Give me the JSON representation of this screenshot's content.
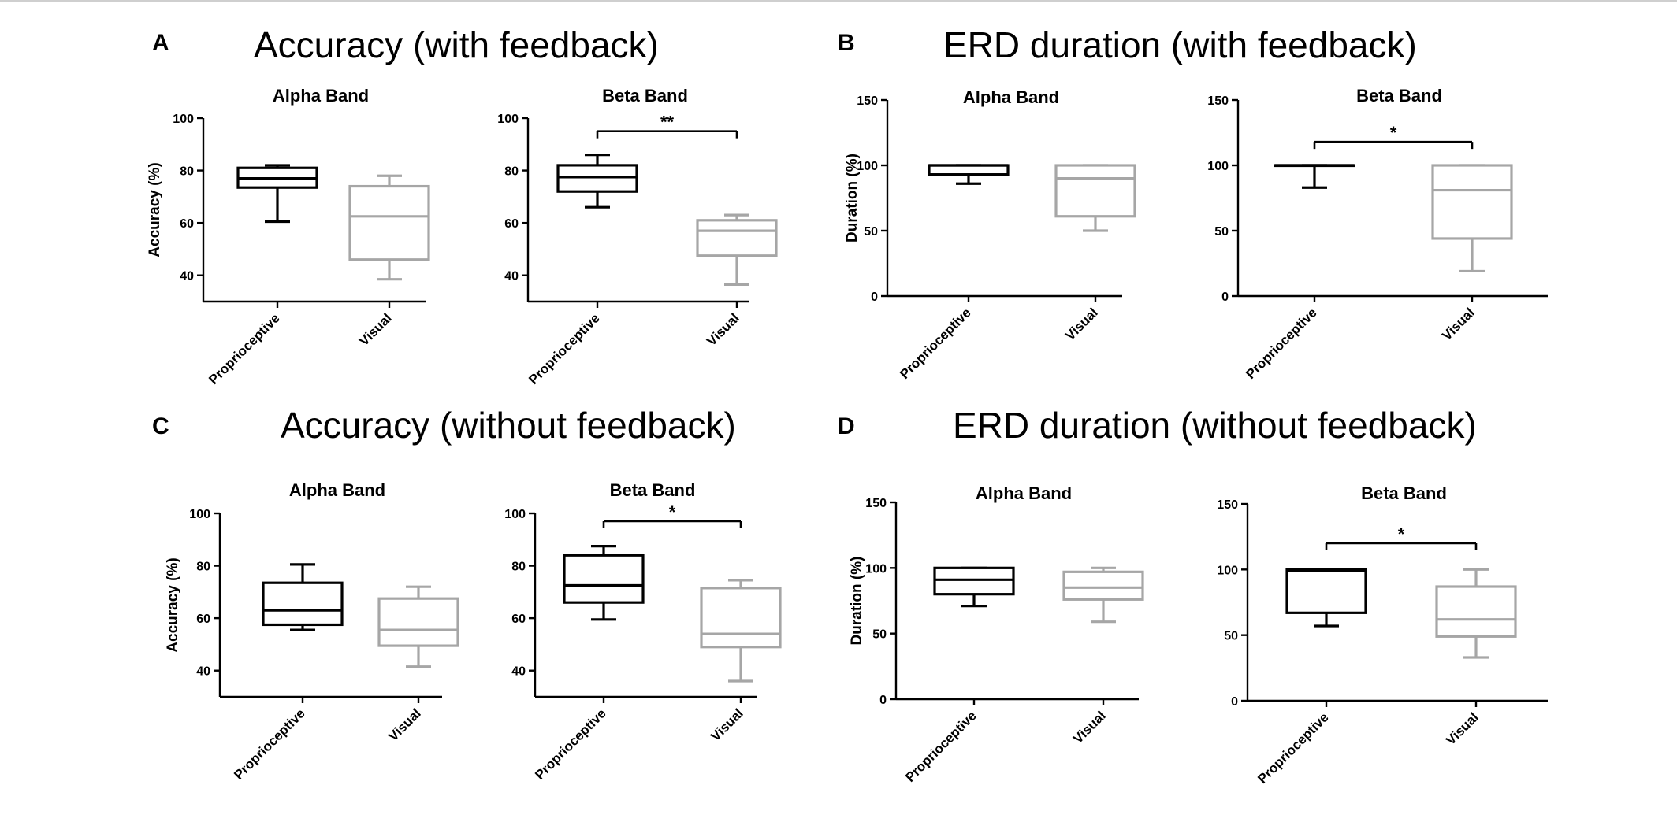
{
  "figure": {
    "panels": [
      {
        "letter": "A",
        "title": "Accuracy (with feedback)"
      },
      {
        "letter": "B",
        "title": "ERD duration (with feedback)"
      },
      {
        "letter": "C",
        "title": "Accuracy (without feedback)"
      },
      {
        "letter": "D",
        "title": "ERD duration (without feedback)"
      }
    ]
  },
  "colors": {
    "proprioceptive": "#000000",
    "visual": "#a6a6a6"
  },
  "chart_data": [
    {
      "type": "box",
      "panel": "A",
      "title": "Alpha Band",
      "ylabel": "Accuracy (%)",
      "ylim": [
        30,
        100
      ],
      "yticks": [
        40,
        60,
        80,
        100
      ],
      "categories": [
        "Proprioceptive",
        "Visual"
      ],
      "boxes": [
        {
          "min": 60.5,
          "q1": 73.5,
          "median": 77,
          "q3": 81,
          "max": 82
        },
        {
          "min": 38.5,
          "q1": 46,
          "median": 62.5,
          "q3": 74,
          "max": 78
        }
      ],
      "significance": null
    },
    {
      "type": "box",
      "panel": "A",
      "title": "Beta Band",
      "ylabel": "",
      "ylim": [
        30,
        100
      ],
      "yticks": [
        40,
        60,
        80,
        100
      ],
      "categories": [
        "Proprioceptive",
        "Visual"
      ],
      "boxes": [
        {
          "min": 66,
          "q1": 72,
          "median": 77.5,
          "q3": 82,
          "max": 86
        },
        {
          "min": 36.5,
          "q1": 47.5,
          "median": 57,
          "q3": 61,
          "max": 63
        }
      ],
      "significance": {
        "label": "**",
        "y": 95
      }
    },
    {
      "type": "box",
      "panel": "B",
      "title": "Alpha Band",
      "ylabel": "Duration (%)",
      "ylim": [
        0,
        150
      ],
      "yticks": [
        0,
        50,
        100,
        150
      ],
      "categories": [
        "Proprioceptive",
        "Visual"
      ],
      "boxes": [
        {
          "min": 86,
          "q1": 93,
          "median": 100,
          "q3": 100,
          "max": 100
        },
        {
          "min": 50,
          "q1": 61,
          "median": 90,
          "q3": 100,
          "max": 100
        }
      ],
      "significance": null
    },
    {
      "type": "box",
      "panel": "B",
      "title": "Beta Band",
      "ylabel": "",
      "ylim": [
        0,
        150
      ],
      "yticks": [
        0,
        50,
        100,
        150
      ],
      "categories": [
        "Proprioceptive",
        "Visual"
      ],
      "boxes": [
        {
          "min": 83,
          "q1": 100,
          "median": 100,
          "q3": 100,
          "max": 100
        },
        {
          "min": 19,
          "q1": 44,
          "median": 81,
          "q3": 100,
          "max": 100
        }
      ],
      "significance": {
        "label": "*",
        "y": 118
      }
    },
    {
      "type": "box",
      "panel": "C",
      "title": "Alpha Band",
      "ylabel": "Accuracy (%)",
      "ylim": [
        30,
        100
      ],
      "yticks": [
        40,
        60,
        80,
        100
      ],
      "categories": [
        "Proprioceptive",
        "Visual"
      ],
      "boxes": [
        {
          "min": 55.5,
          "q1": 57.5,
          "median": 63,
          "q3": 73.5,
          "max": 80.5
        },
        {
          "min": 41.5,
          "q1": 49.5,
          "median": 55.5,
          "q3": 67.5,
          "max": 72
        }
      ],
      "significance": null
    },
    {
      "type": "box",
      "panel": "C",
      "title": "Beta Band",
      "ylabel": "",
      "ylim": [
        30,
        100
      ],
      "yticks": [
        40,
        60,
        80,
        100
      ],
      "categories": [
        "Proprioceptive",
        "Visual"
      ],
      "boxes": [
        {
          "min": 59.5,
          "q1": 66,
          "median": 72.5,
          "q3": 84,
          "max": 87.5
        },
        {
          "min": 36,
          "q1": 49,
          "median": 54,
          "q3": 71.5,
          "max": 74.5
        }
      ],
      "significance": {
        "label": "*",
        "y": 97
      }
    },
    {
      "type": "box",
      "panel": "D",
      "title": "Alpha Band",
      "ylabel": "Duration (%)",
      "ylim": [
        0,
        150
      ],
      "yticks": [
        0,
        50,
        100,
        150
      ],
      "categories": [
        "Proprioceptive",
        "Visual"
      ],
      "boxes": [
        {
          "min": 71,
          "q1": 80,
          "median": 91,
          "q3": 100,
          "max": 100
        },
        {
          "min": 59,
          "q1": 76,
          "median": 85,
          "q3": 97,
          "max": 100
        }
      ],
      "significance": null
    },
    {
      "type": "box",
      "panel": "D",
      "title": "Beta Band",
      "ylabel": "",
      "ylim": [
        0,
        150
      ],
      "yticks": [
        0,
        50,
        100,
        150
      ],
      "categories": [
        "Proprioceptive",
        "Visual"
      ],
      "boxes": [
        {
          "min": 57,
          "q1": 67,
          "median": 99,
          "q3": 100,
          "max": 100
        },
        {
          "min": 33,
          "q1": 49,
          "median": 62,
          "q3": 87,
          "max": 100
        }
      ],
      "significance": {
        "label": "*",
        "y": 120
      }
    }
  ]
}
